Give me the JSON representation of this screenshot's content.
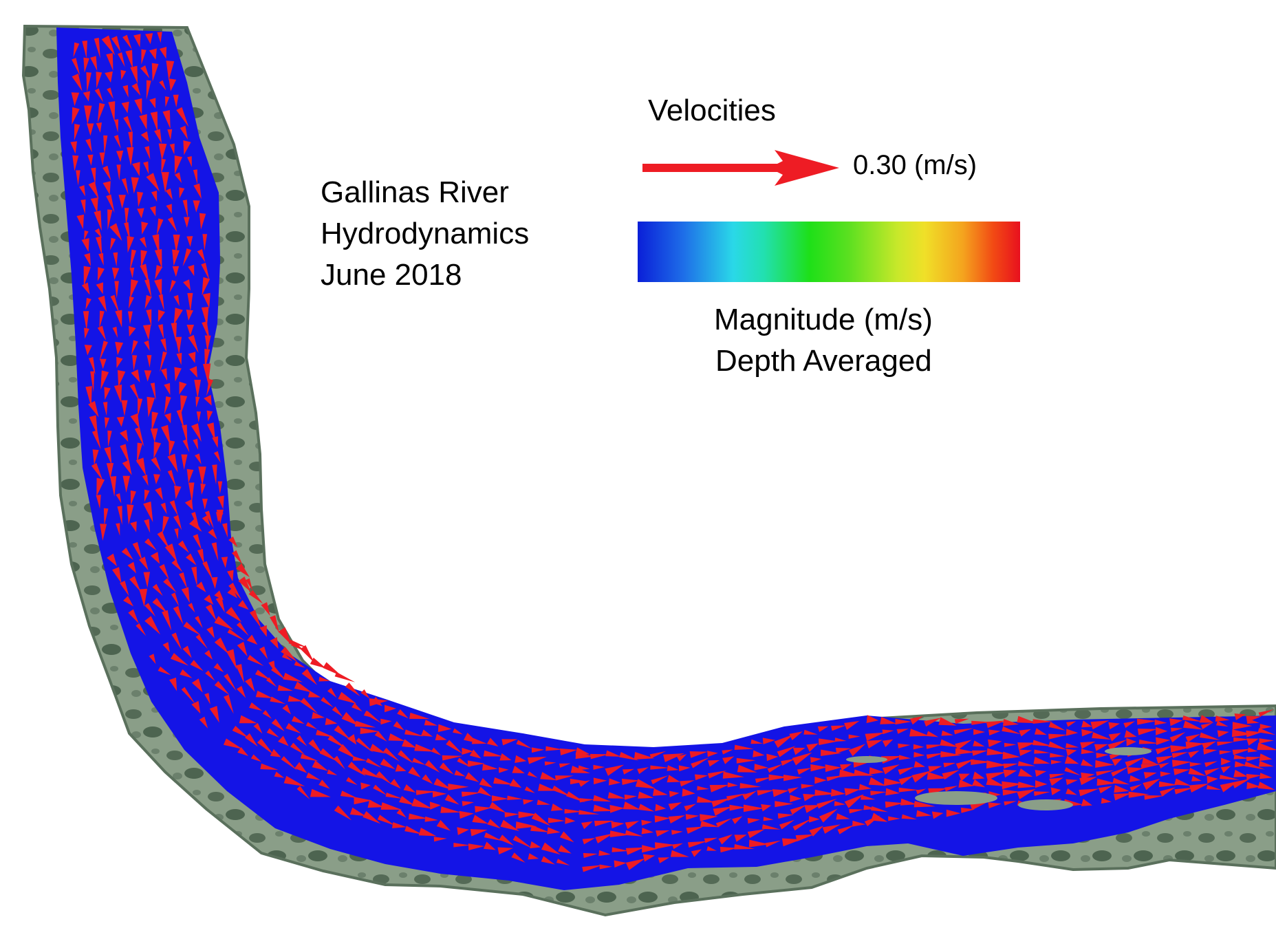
{
  "title": {
    "lines": [
      "Gallinas River",
      "Hydrodynamics",
      "June 2018"
    ]
  },
  "legend": {
    "vector_heading": "Velocities",
    "reference_value_label": "0.30 (m/s)",
    "colorbar_label_line1": "Magnitude (m/s)",
    "colorbar_label_line2": "Depth Averaged",
    "colorbar_stops": [
      "#0a1fd8",
      "#2ad8e8",
      "#1ee018",
      "#f0e028",
      "#f4a41e",
      "#e8101e"
    ]
  },
  "colors": {
    "bank_light": "#8a9e88",
    "bank_dark": "#4d6450",
    "water": "#1414e6",
    "velocity_arrow": "#ee1c24",
    "background": "#ffffff"
  }
}
